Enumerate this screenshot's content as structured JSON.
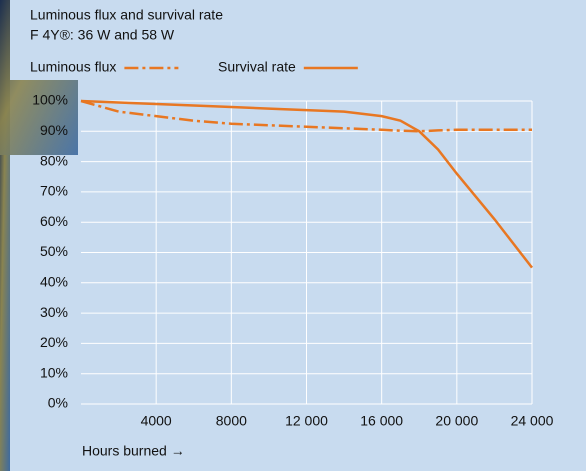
{
  "chart_data": {
    "type": "line",
    "title": "Luminous flux and survival rate",
    "subtitle": "F 4Y®: 36 W and 58 W",
    "x_label": "Hours burned →",
    "x": [
      0,
      2000,
      4000,
      6000,
      8000,
      10000,
      12000,
      14000,
      16000,
      17000,
      18000,
      19000,
      20000,
      22000,
      24000
    ],
    "series": [
      {
        "name": "Luminous flux",
        "color": "#e87722",
        "dash": "dashdot",
        "values": [
          100,
          96.5,
          95,
          93.5,
          92.5,
          92,
          91.5,
          91,
          90.5,
          90.2,
          90,
          90.3,
          90.5,
          90.5,
          90.5
        ]
      },
      {
        "name": "Survival rate",
        "color": "#e87722",
        "dash": "solid",
        "values": [
          100,
          99.5,
          99,
          98.5,
          98,
          97.5,
          97,
          96.5,
          95,
          93.5,
          90,
          84,
          76,
          61,
          45
        ]
      }
    ],
    "xlim": [
      0,
      24000
    ],
    "xticks": [
      {
        "value": 4000,
        "label": "4000"
      },
      {
        "value": 8000,
        "label": "8000"
      },
      {
        "value": 12000,
        "label": "12 000"
      },
      {
        "value": 16000,
        "label": "16 000"
      },
      {
        "value": 20000,
        "label": "20 000"
      },
      {
        "value": 24000,
        "label": "24 000"
      }
    ],
    "ylim": [
      0,
      100
    ],
    "yticks": [
      {
        "value": 0,
        "label": "0%"
      },
      {
        "value": 10,
        "label": "10%"
      },
      {
        "value": 20,
        "label": "20%"
      },
      {
        "value": 30,
        "label": "30%"
      },
      {
        "value": 40,
        "label": "40%"
      },
      {
        "value": 50,
        "label": "50%"
      },
      {
        "value": 60,
        "label": "60%"
      },
      {
        "value": 70,
        "label": "70%"
      },
      {
        "value": 80,
        "label": "80%"
      },
      {
        "value": 90,
        "label": "90%"
      },
      {
        "value": 100,
        "label": "100%"
      }
    ],
    "grid": true
  }
}
